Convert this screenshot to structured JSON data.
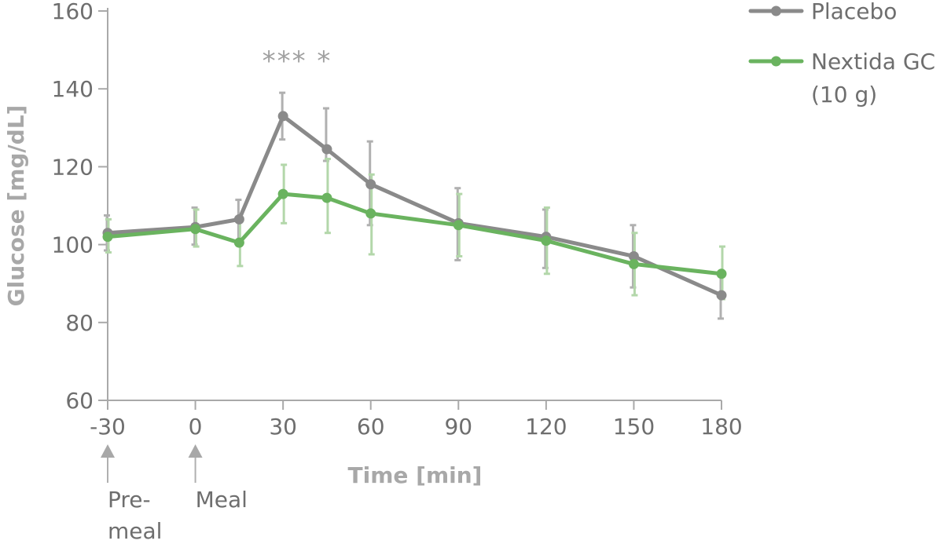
{
  "chart_data": {
    "type": "line",
    "title": "",
    "xlabel": "Time [min]",
    "ylabel": "Glucose [mg/dL]",
    "xlim": [
      -30,
      180
    ],
    "ylim": [
      60,
      160
    ],
    "xticks": [
      "-30",
      "0",
      "30",
      "60",
      "90",
      "120",
      "150",
      "180"
    ],
    "yticks": [
      "60",
      "80",
      "100",
      "120",
      "140",
      "160"
    ],
    "grid": false,
    "legend_position": "top-right",
    "significance_text": "*** *",
    "annotations": [
      {
        "x": -30,
        "text_lines": [
          "Pre-",
          "meal"
        ]
      },
      {
        "x": 0,
        "text_lines": [
          "Meal"
        ]
      }
    ],
    "series": [
      {
        "name": "Placebo",
        "color": "#8a8a8a",
        "error_color": "#b0b0b0",
        "points": [
          {
            "x": -30,
            "y": 103,
            "lo": 98.5,
            "hi": 107.5
          },
          {
            "x": 0,
            "y": 104.5,
            "lo": 100,
            "hi": 109.5
          },
          {
            "x": 15,
            "y": 106.5,
            "lo": 101,
            "hi": 111.5
          },
          {
            "x": 30,
            "y": 133,
            "lo": 127,
            "hi": 139
          },
          {
            "x": 45,
            "y": 124.5,
            "lo": 121.5,
            "hi": 135
          },
          {
            "x": 60,
            "y": 115.5,
            "lo": 105,
            "hi": 126.5
          },
          {
            "x": 90,
            "y": 105.5,
            "lo": 96,
            "hi": 114.5
          },
          {
            "x": 120,
            "y": 102,
            "lo": 94,
            "hi": 109
          },
          {
            "x": 150,
            "y": 97,
            "lo": 89,
            "hi": 105
          },
          {
            "x": 180,
            "y": 87,
            "lo": 81,
            "hi": 93
          }
        ]
      },
      {
        "name_lines": [
          "Nextida GC",
          "(10 g)"
        ],
        "color": "#6ab35f",
        "error_color": "#b3d7aa",
        "points": [
          {
            "x": -30,
            "y": 102,
            "lo": 98,
            "hi": 106.5
          },
          {
            "x": 0,
            "y": 104,
            "lo": 99.5,
            "hi": 109
          },
          {
            "x": 15,
            "y": 100.5,
            "lo": 94.5,
            "hi": 106
          },
          {
            "x": 30,
            "y": 113,
            "lo": 105.5,
            "hi": 120.5
          },
          {
            "x": 45,
            "y": 112,
            "lo": 103,
            "hi": 122
          },
          {
            "x": 60,
            "y": 108,
            "lo": 97.5,
            "hi": 118
          },
          {
            "x": 90,
            "y": 105,
            "lo": 97,
            "hi": 113
          },
          {
            "x": 120,
            "y": 101,
            "lo": 92.5,
            "hi": 109.5
          },
          {
            "x": 150,
            "y": 95,
            "lo": 87,
            "hi": 103
          },
          {
            "x": 180,
            "y": 92.5,
            "lo": 86,
            "hi": 99.5
          }
        ]
      }
    ]
  }
}
